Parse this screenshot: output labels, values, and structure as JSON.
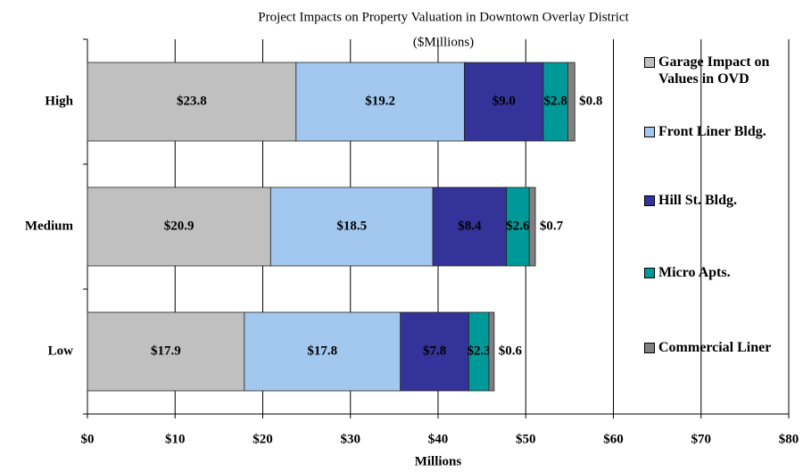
{
  "chart_data": {
    "type": "stacked-bar-horizontal",
    "title": "Project Impacts on Property Valuation in Downtown Overlay District",
    "subtitle": "($Millions)",
    "x_label": "Millions",
    "categories": [
      "High",
      "Medium",
      "Low"
    ],
    "series": [
      {
        "name": "Garage Impact on Values in OVD",
        "color": "#c0c0c0",
        "values": [
          23.8,
          20.9,
          17.9
        ],
        "value_labels": [
          "$23.8",
          "$20.9",
          "$17.9"
        ]
      },
      {
        "name": "Front Liner Bldg.",
        "color": "#a3c8ef",
        "values": [
          19.2,
          18.5,
          17.8
        ],
        "value_labels": [
          "$19.2",
          "$18.5",
          "$17.8"
        ]
      },
      {
        "name": "Hill St. Bldg.",
        "color": "#333399",
        "values": [
          9.0,
          8.4,
          7.8
        ],
        "value_labels": [
          "$9.0",
          "$8.4",
          "$7.8"
        ]
      },
      {
        "name": "Micro Apts.",
        "color": "#009999",
        "values": [
          2.8,
          2.6,
          2.3
        ],
        "value_labels": [
          "$2.8",
          "$2.6",
          "$2.3"
        ]
      },
      {
        "name": "Commercial Liner",
        "color": "#808080",
        "values": [
          0.8,
          0.7,
          0.6
        ],
        "value_labels": [
          "$0.8",
          "$0.7",
          "$0.6"
        ]
      }
    ],
    "xlim": [
      0,
      80
    ],
    "xticks": [
      {
        "value": 0,
        "label": "$0"
      },
      {
        "value": 10,
        "label": "$10"
      },
      {
        "value": 20,
        "label": "$20"
      },
      {
        "value": 30,
        "label": "$30"
      },
      {
        "value": 40,
        "label": "$40"
      },
      {
        "value": 50,
        "label": "$50"
      },
      {
        "value": 60,
        "label": "$60"
      },
      {
        "value": 70,
        "label": "$70"
      },
      {
        "value": 80,
        "label": "$80"
      }
    ],
    "grid": true,
    "legend": "right"
  }
}
